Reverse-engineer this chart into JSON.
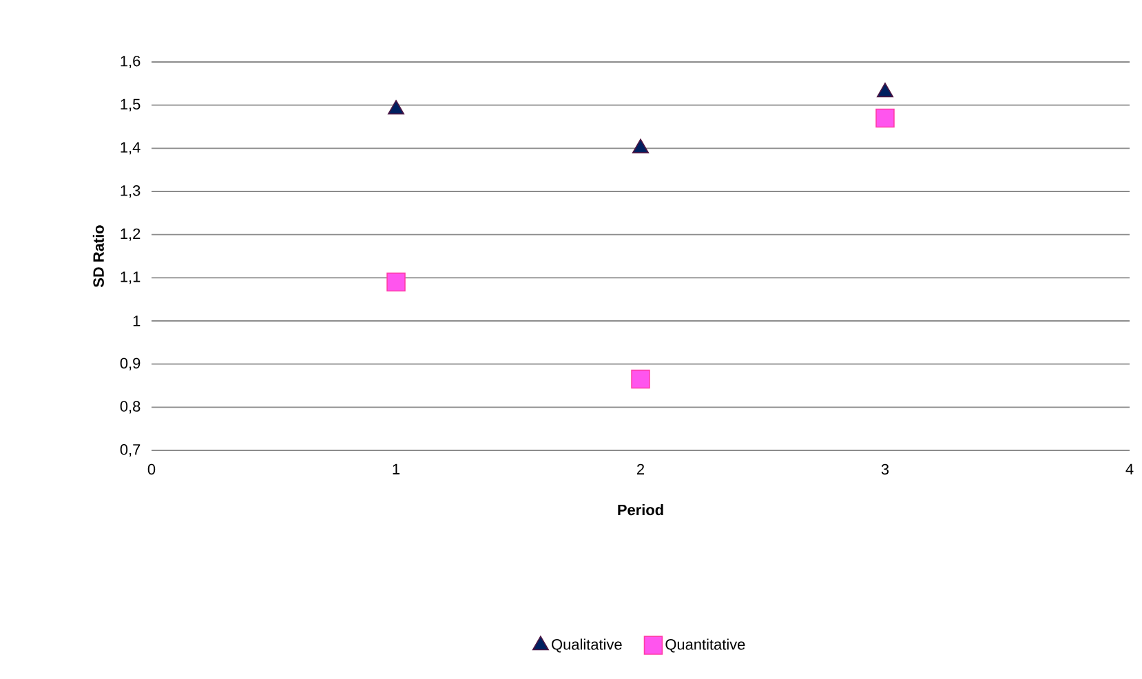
{
  "chart_data": {
    "type": "scatter",
    "xlabel": "Period",
    "ylabel": "SD Ratio",
    "x": [
      1,
      2,
      3
    ],
    "series": [
      {
        "name": "Qualitative",
        "color": "#002060",
        "marker": "triangle",
        "values": [
          1.49,
          1.4,
          1.53
        ]
      },
      {
        "name": "Quantitative",
        "color": "#ff55ee",
        "marker": "square",
        "values": [
          1.09,
          0.865,
          1.47
        ]
      }
    ],
    "xlim": [
      0,
      4
    ],
    "xticks": [
      0,
      1,
      2,
      3,
      4
    ],
    "ylim": [
      0.7,
      1.6
    ],
    "yticks": [
      {
        "value": 0.7,
        "label": "0,7"
      },
      {
        "value": 0.8,
        "label": "0,8"
      },
      {
        "value": 0.9,
        "label": "0,9"
      },
      {
        "value": 1,
        "label": "1"
      },
      {
        "value": 1.1,
        "label": "1,1"
      },
      {
        "value": 1.2,
        "label": "1,2"
      },
      {
        "value": 1.3,
        "label": "1,3"
      },
      {
        "value": 1.4,
        "label": "1,4"
      },
      {
        "value": 1.5,
        "label": "1,5"
      },
      {
        "value": 1.6,
        "label": "1,6"
      }
    ],
    "grid": "y",
    "legend": "bottom"
  }
}
